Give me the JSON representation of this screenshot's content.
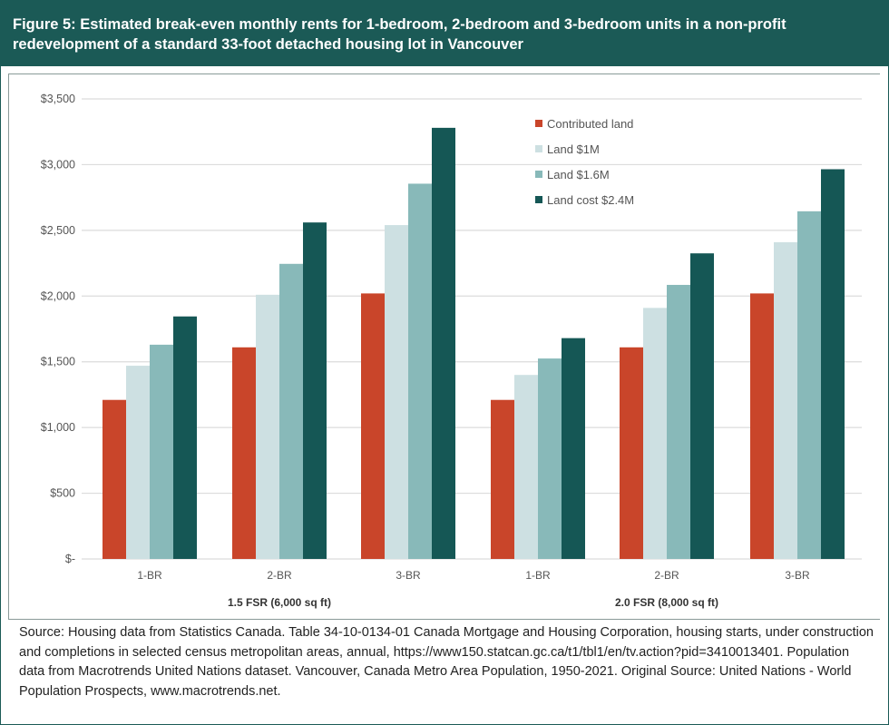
{
  "title": "Figure 5: Estimated break-even monthly rents for 1-bedroom, 2-bedroom and 3-bedroom units in a non-profit redevelopment of a standard 33-foot detached housing lot in Vancouver",
  "source": "Source: Housing data from Statistics Canada. Table 34-10-0134-01 Canada Mortgage and Housing Corporation, housing starts, under construction and completions in selected census metropolitan areas, annual, https://www150.statcan.gc.ca/t1/tbl1/en/tv.action?pid=3410013401. Population data from Macrotrends United Nations dataset. Vancouver, Canada Metro Area Population, 1950-2021. Original Source: United Nations - World Population Prospects, www.macrotrends.net.",
  "chart_data": {
    "type": "bar",
    "categories": [
      "1-BR",
      "2-BR",
      "3-BR",
      "1-BR",
      "2-BR",
      "3-BR"
    ],
    "groups": [
      {
        "label": "1.5 FSR (6,000 sq ft)",
        "categories": [
          "1-BR",
          "2-BR",
          "3-BR"
        ]
      },
      {
        "label": "2.0 FSR (8,000 sq ft)",
        "categories": [
          "1-BR",
          "2-BR",
          "3-BR"
        ]
      }
    ],
    "series": [
      {
        "name": "Contributed land",
        "color": "#c9452a",
        "values": [
          1210,
          1610,
          2020,
          1210,
          1610,
          2020
        ]
      },
      {
        "name": "Land $1M",
        "color": "#cde0e2",
        "values": [
          1470,
          2010,
          2540,
          1400,
          1910,
          2410
        ]
      },
      {
        "name": "Land $1.6M",
        "color": "#88b9b9",
        "values": [
          1630,
          2245,
          2855,
          1525,
          2085,
          2645
        ]
      },
      {
        "name": "Land cost $2.4M",
        "color": "#155755",
        "values": [
          1845,
          2560,
          3280,
          1680,
          2325,
          2965
        ]
      }
    ],
    "yticks": [
      "$-",
      "$500",
      "$1,000",
      "$1,500",
      "$2,000",
      "$2,500",
      "$3,000",
      "$3,500"
    ],
    "ylim": [
      0,
      3500
    ],
    "grid": true,
    "legend": "top-right"
  }
}
